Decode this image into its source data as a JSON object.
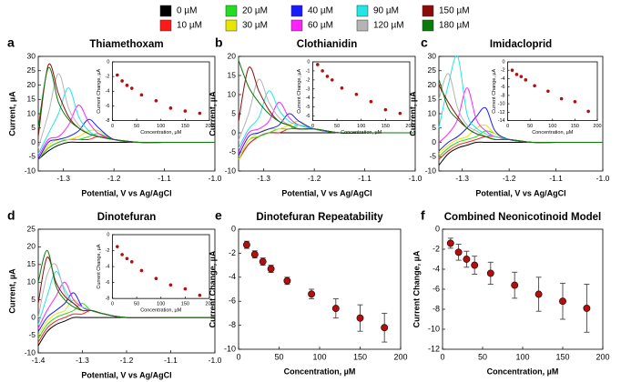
{
  "legend": [
    {
      "name": "0 µM",
      "color": "#000000"
    },
    {
      "name": "10 µM",
      "color": "#ff1a1a"
    },
    {
      "name": "20 µM",
      "color": "#22dd22"
    },
    {
      "name": "30 µM",
      "color": "#e6e600"
    },
    {
      "name": "40 µM",
      "color": "#1a1aff"
    },
    {
      "name": "60 µM",
      "color": "#ff22ff"
    },
    {
      "name": "90 µM",
      "color": "#22e6e6"
    },
    {
      "name": "120 µM",
      "color": "#b4b4b4"
    },
    {
      "name": "150 µM",
      "color": "#8b0a0a"
    },
    {
      "name": "180 µM",
      "color": "#0a7a0a"
    }
  ],
  "chart_data": [
    {
      "type": "line",
      "letter": "a",
      "title": "Thiamethoxam",
      "xlabel": "Potential, V vs Ag/AgCl",
      "ylabel": "Current, µA",
      "x": [
        -1.35,
        -1.33,
        -1.31,
        -1.29,
        -1.27,
        -1.25,
        -1.23,
        -1.2,
        -1.15,
        -1.1,
        -1.0
      ],
      "xlim": [
        -1.35,
        -1.0
      ],
      "ylim": [
        -10,
        30
      ],
      "xticks": [
        -1.3,
        -1.2,
        -1.1,
        {
          "value": -1.0,
          "label": "-1.0"
        }
      ],
      "yticks": [
        -10,
        -5,
        0,
        5,
        10,
        15,
        20,
        25,
        30
      ],
      "series": [
        {
          "values": [
            -6,
            -3,
            -1,
            0,
            0,
            0,
            0,
            0,
            0,
            0,
            0
          ]
        },
        {
          "values": [
            -6,
            -2,
            0,
            1,
            1,
            1,
            2,
            1,
            0,
            0,
            0
          ]
        },
        {
          "values": [
            -6,
            -2,
            0,
            1,
            1,
            2,
            3,
            1,
            0,
            0,
            0
          ]
        },
        {
          "values": [
            -6,
            -1,
            1,
            1,
            2,
            4,
            4,
            1,
            0,
            0,
            0
          ]
        },
        {
          "values": [
            -6,
            0,
            1,
            2,
            4,
            8,
            5,
            1,
            0,
            0,
            0
          ]
        },
        {
          "values": [
            -5,
            1,
            2,
            6,
            13,
            7,
            3,
            1,
            0,
            0,
            0
          ]
        },
        {
          "values": [
            -4,
            3,
            10,
            19,
            9,
            4,
            2,
            1,
            0,
            0,
            0
          ]
        },
        {
          "values": [
            -2,
            10,
            24,
            12,
            6,
            3,
            2,
            1,
            0,
            0,
            0
          ]
        },
        {
          "values": [
            2,
            27,
            17,
            9,
            5,
            3,
            2,
            1,
            0,
            0,
            0
          ]
        },
        {
          "values": [
            5,
            26,
            14,
            8,
            5,
            3,
            2,
            1,
            0,
            0,
            0
          ]
        }
      ],
      "inset": {
        "type": "scatter",
        "xlabel": "Concentration, µM",
        "ylabel": "Current Change, µA",
        "x": [
          10,
          20,
          30,
          40,
          60,
          90,
          120,
          150,
          180
        ],
        "values": [
          -1.8,
          -2.6,
          -3.2,
          -3.6,
          -4.5,
          -5.3,
          -6.3,
          -6.7,
          -7.0
        ],
        "xlim": [
          0,
          200
        ],
        "ylim": [
          -8,
          0
        ],
        "xticks": [
          0,
          50,
          100,
          150,
          200
        ],
        "yticks": [
          0,
          -2,
          -4,
          -6,
          -8
        ]
      }
    },
    {
      "type": "line",
      "letter": "b",
      "title": "Clothianidin",
      "xlabel": "Potential, V vs Ag/AgCl",
      "ylabel": "Current, µA",
      "x": [
        -1.35,
        -1.33,
        -1.31,
        -1.29,
        -1.27,
        -1.25,
        -1.23,
        -1.2,
        -1.15,
        -1.1,
        -1.0
      ],
      "xlim": [
        -1.35,
        -1.0
      ],
      "ylim": [
        -10,
        20
      ],
      "xticks": [
        -1.3,
        -1.2,
        -1.1,
        {
          "value": -1.0,
          "label": "-1.0"
        }
      ],
      "yticks": [
        -10,
        -5,
        0,
        5,
        10,
        15,
        20
      ],
      "series": [
        {
          "values": [
            -7,
            -3,
            -1,
            0,
            0,
            0,
            0,
            0,
            0,
            0,
            0
          ]
        },
        {
          "values": [
            -7,
            -3,
            -1,
            0,
            0,
            1,
            1,
            1,
            0,
            0,
            0
          ]
        },
        {
          "values": [
            -7,
            -2,
            -1,
            0,
            1,
            1,
            2,
            1,
            0,
            0,
            0
          ]
        },
        {
          "values": [
            -7,
            -2,
            0,
            1,
            1,
            2,
            3,
            1,
            0,
            0,
            0
          ]
        },
        {
          "values": [
            -6,
            -1,
            0,
            1,
            2,
            5,
            3,
            1,
            0,
            0,
            0
          ]
        },
        {
          "values": [
            -5,
            0,
            1,
            3,
            8,
            4,
            2,
            1,
            0,
            0,
            0
          ]
        },
        {
          "values": [
            -4,
            1,
            4,
            11,
            6,
            3,
            2,
            1,
            0,
            0,
            0
          ]
        },
        {
          "values": [
            -2,
            5,
            14,
            8,
            4,
            2,
            1,
            1,
            0,
            0,
            0
          ]
        },
        {
          "values": [
            3,
            17,
            11,
            6,
            3,
            2,
            1,
            1,
            0,
            0,
            0
          ]
        },
        {
          "values": [
            19,
            12,
            8,
            5,
            3,
            2,
            1,
            1,
            0,
            0,
            0
          ]
        }
      ],
      "inset": {
        "type": "scatter",
        "xlabel": "Concentration, µM",
        "ylabel": "Current Change, µA",
        "x": [
          10,
          20,
          30,
          40,
          60,
          90,
          120,
          150,
          180
        ],
        "values": [
          -0.3,
          -1.0,
          -1.6,
          -2.0,
          -2.9,
          -3.6,
          -4.4,
          -5.3,
          -5.7
        ],
        "xlim": [
          0,
          200
        ],
        "ylim": [
          -6.5,
          0
        ],
        "xticks": [
          0,
          50,
          100,
          150,
          200
        ],
        "yticks": [
          0,
          -1,
          -2,
          -3,
          -4,
          -5,
          -6
        ]
      }
    },
    {
      "type": "line",
      "letter": "c",
      "title": "Imidacloprid",
      "xlabel": "Potential, V vs Ag/AgCl",
      "ylabel": "Current, µA",
      "x": [
        -1.35,
        -1.33,
        -1.31,
        -1.29,
        -1.27,
        -1.25,
        -1.23,
        -1.2,
        -1.15,
        -1.1,
        -1.0
      ],
      "xlim": [
        -1.35,
        -1.0
      ],
      "ylim": [
        -10,
        30
      ],
      "xticks": [
        -1.3,
        -1.2,
        -1.1,
        {
          "value": -1.0,
          "label": "-1.0"
        }
      ],
      "yticks": [
        -10,
        -5,
        0,
        5,
        10,
        15,
        20,
        25,
        30
      ],
      "series": [
        {
          "values": [
            -8,
            -4,
            -2,
            -1,
            0,
            0,
            0,
            0,
            0,
            0,
            0
          ]
        },
        {
          "values": [
            -6,
            -3,
            -1,
            0,
            1,
            2,
            2,
            1,
            0,
            0,
            0
          ]
        },
        {
          "values": [
            -5,
            -2,
            0,
            1,
            2,
            4,
            3,
            1,
            0,
            0,
            0
          ]
        },
        {
          "values": [
            -4,
            -1,
            1,
            2,
            5,
            6,
            3,
            1,
            0,
            0,
            0
          ]
        },
        {
          "values": [
            -3,
            0,
            2,
            5,
            9,
            12,
            4,
            1,
            0,
            0,
            0
          ]
        },
        {
          "values": [
            0,
            3,
            8,
            19,
            8,
            4,
            2,
            1,
            0,
            0,
            0
          ]
        },
        {
          "values": [
            5,
            20,
            30,
            10,
            5,
            3,
            2,
            1,
            0,
            0,
            0
          ]
        },
        {
          "values": [
            15,
            24,
            12,
            6,
            4,
            2,
            1,
            1,
            0,
            0,
            0
          ]
        },
        {
          "values": [
            20,
            14,
            9,
            5,
            3,
            2,
            1,
            1,
            0,
            0,
            0
          ]
        },
        {
          "values": [
            22,
            12,
            8,
            5,
            3,
            2,
            1,
            1,
            0,
            0,
            0
          ]
        }
      ],
      "inset": {
        "type": "scatter",
        "xlabel": "Concentration, µM",
        "ylabel": "Current Change, µA",
        "x": [
          10,
          20,
          30,
          40,
          60,
          90,
          120,
          150,
          180
        ],
        "values": [
          -2.0,
          -3.0,
          -3.5,
          -4.3,
          -5.7,
          -7.0,
          -8.8,
          -9.5,
          -11.8
        ],
        "xlim": [
          0,
          200
        ],
        "ylim": [
          -14,
          0
        ],
        "xticks": [
          0,
          50,
          100,
          150,
          200
        ],
        "yticks": [
          0,
          -2,
          -4,
          -6,
          -8,
          -10,
          -12,
          -14
        ]
      }
    },
    {
      "type": "line",
      "letter": "d",
      "title": "Dinotefuran",
      "xlabel": "Potential, V vs Ag/AgCl",
      "ylabel": "Current, µA",
      "x": [
        -1.4,
        -1.38,
        -1.36,
        -1.34,
        -1.32,
        -1.3,
        -1.28,
        -1.25,
        -1.2,
        -1.1,
        -1.0
      ],
      "xlim": [
        -1.4,
        -1.0
      ],
      "ylim": [
        -10,
        25
      ],
      "xticks": [
        -1.4,
        -1.3,
        -1.2,
        -1.1,
        {
          "value": -1.0,
          "label": "-1.0"
        }
      ],
      "yticks": [
        -10,
        -5,
        0,
        5,
        10,
        15,
        20,
        25
      ],
      "series": [
        {
          "values": [
            -8,
            -4,
            -2,
            -1,
            0,
            0,
            0,
            0,
            0,
            0,
            0
          ]
        },
        {
          "values": [
            -7,
            -3,
            -1,
            0,
            1,
            1,
            2,
            1,
            0,
            0,
            0
          ]
        },
        {
          "values": [
            -6,
            -2,
            0,
            1,
            2,
            4,
            2,
            1,
            0,
            0,
            0
          ]
        },
        {
          "values": [
            -5,
            -1,
            1,
            2,
            5,
            3,
            2,
            1,
            0,
            0,
            0
          ]
        },
        {
          "values": [
            -4,
            0,
            2,
            4,
            7,
            3,
            2,
            1,
            0,
            0,
            0
          ]
        },
        {
          "values": [
            -3,
            2,
            6,
            10,
            5,
            3,
            2,
            1,
            0,
            0,
            0
          ]
        },
        {
          "values": [
            -2,
            6,
            13,
            8,
            4,
            3,
            2,
            1,
            0,
            0,
            0
          ]
        },
        {
          "values": [
            0,
            12,
            15,
            7,
            4,
            3,
            2,
            1,
            0,
            0,
            0
          ]
        },
        {
          "values": [
            4,
            17,
            10,
            6,
            4,
            2,
            2,
            1,
            0,
            0,
            0
          ]
        },
        {
          "values": [
            10,
            19,
            9,
            5,
            3,
            2,
            2,
            1,
            0,
            0,
            0
          ]
        }
      ],
      "inset": {
        "type": "scatter",
        "xlabel": "Concentration, µM",
        "ylabel": "Current Change, µA",
        "x": [
          10,
          20,
          30,
          40,
          60,
          90,
          120,
          150,
          180
        ],
        "values": [
          -1.5,
          -2.5,
          -3.0,
          -3.4,
          -4.5,
          -5.5,
          -6.3,
          -6.8,
          -7.6
        ],
        "xlim": [
          0,
          200
        ],
        "ylim": [
          -8,
          0
        ],
        "xticks": [
          0,
          50,
          100,
          150,
          200
        ],
        "yticks": [
          0,
          -2,
          -4,
          -6,
          -8
        ]
      }
    },
    {
      "type": "errorbar",
      "letter": "e",
      "title": "Dinotefuran Repeatability",
      "xlabel": "Concentration, µM",
      "ylabel": "Current Change, µA",
      "color": "#b01010",
      "x": [
        10,
        20,
        30,
        40,
        60,
        90,
        120,
        150,
        180
      ],
      "values": [
        -1.3,
        -2.1,
        -2.7,
        -3.3,
        -4.3,
        -5.4,
        -6.6,
        -7.4,
        -8.2
      ],
      "errors": [
        0.3,
        0.3,
        0.3,
        0.3,
        0.3,
        0.4,
        0.8,
        1.1,
        1.2
      ],
      "xlim": [
        0,
        200
      ],
      "ylim": [
        -10,
        0
      ],
      "xticks": [
        0,
        50,
        100,
        150,
        200
      ],
      "yticks": [
        0,
        -2,
        -4,
        -6,
        -8,
        -10
      ]
    },
    {
      "type": "errorbar",
      "letter": "f",
      "title": "Combined Neonicotinoid Model",
      "xlabel": "Concentration, µM",
      "ylabel": "Current Change, µA",
      "color": "#b01010",
      "x": [
        10,
        20,
        30,
        40,
        60,
        90,
        120,
        150,
        180
      ],
      "values": [
        -1.4,
        -2.3,
        -3.0,
        -3.6,
        -4.4,
        -5.6,
        -6.5,
        -7.2,
        -7.9
      ],
      "errors": [
        0.5,
        0.8,
        0.8,
        0.9,
        1.1,
        1.3,
        1.7,
        1.8,
        2.4
      ],
      "xlim": [
        0,
        200
      ],
      "ylim": [
        -12,
        0
      ],
      "xticks": [
        0,
        50,
        100,
        150,
        200
      ],
      "yticks": [
        0,
        -2,
        -4,
        -6,
        -8,
        -10,
        -12
      ]
    }
  ]
}
